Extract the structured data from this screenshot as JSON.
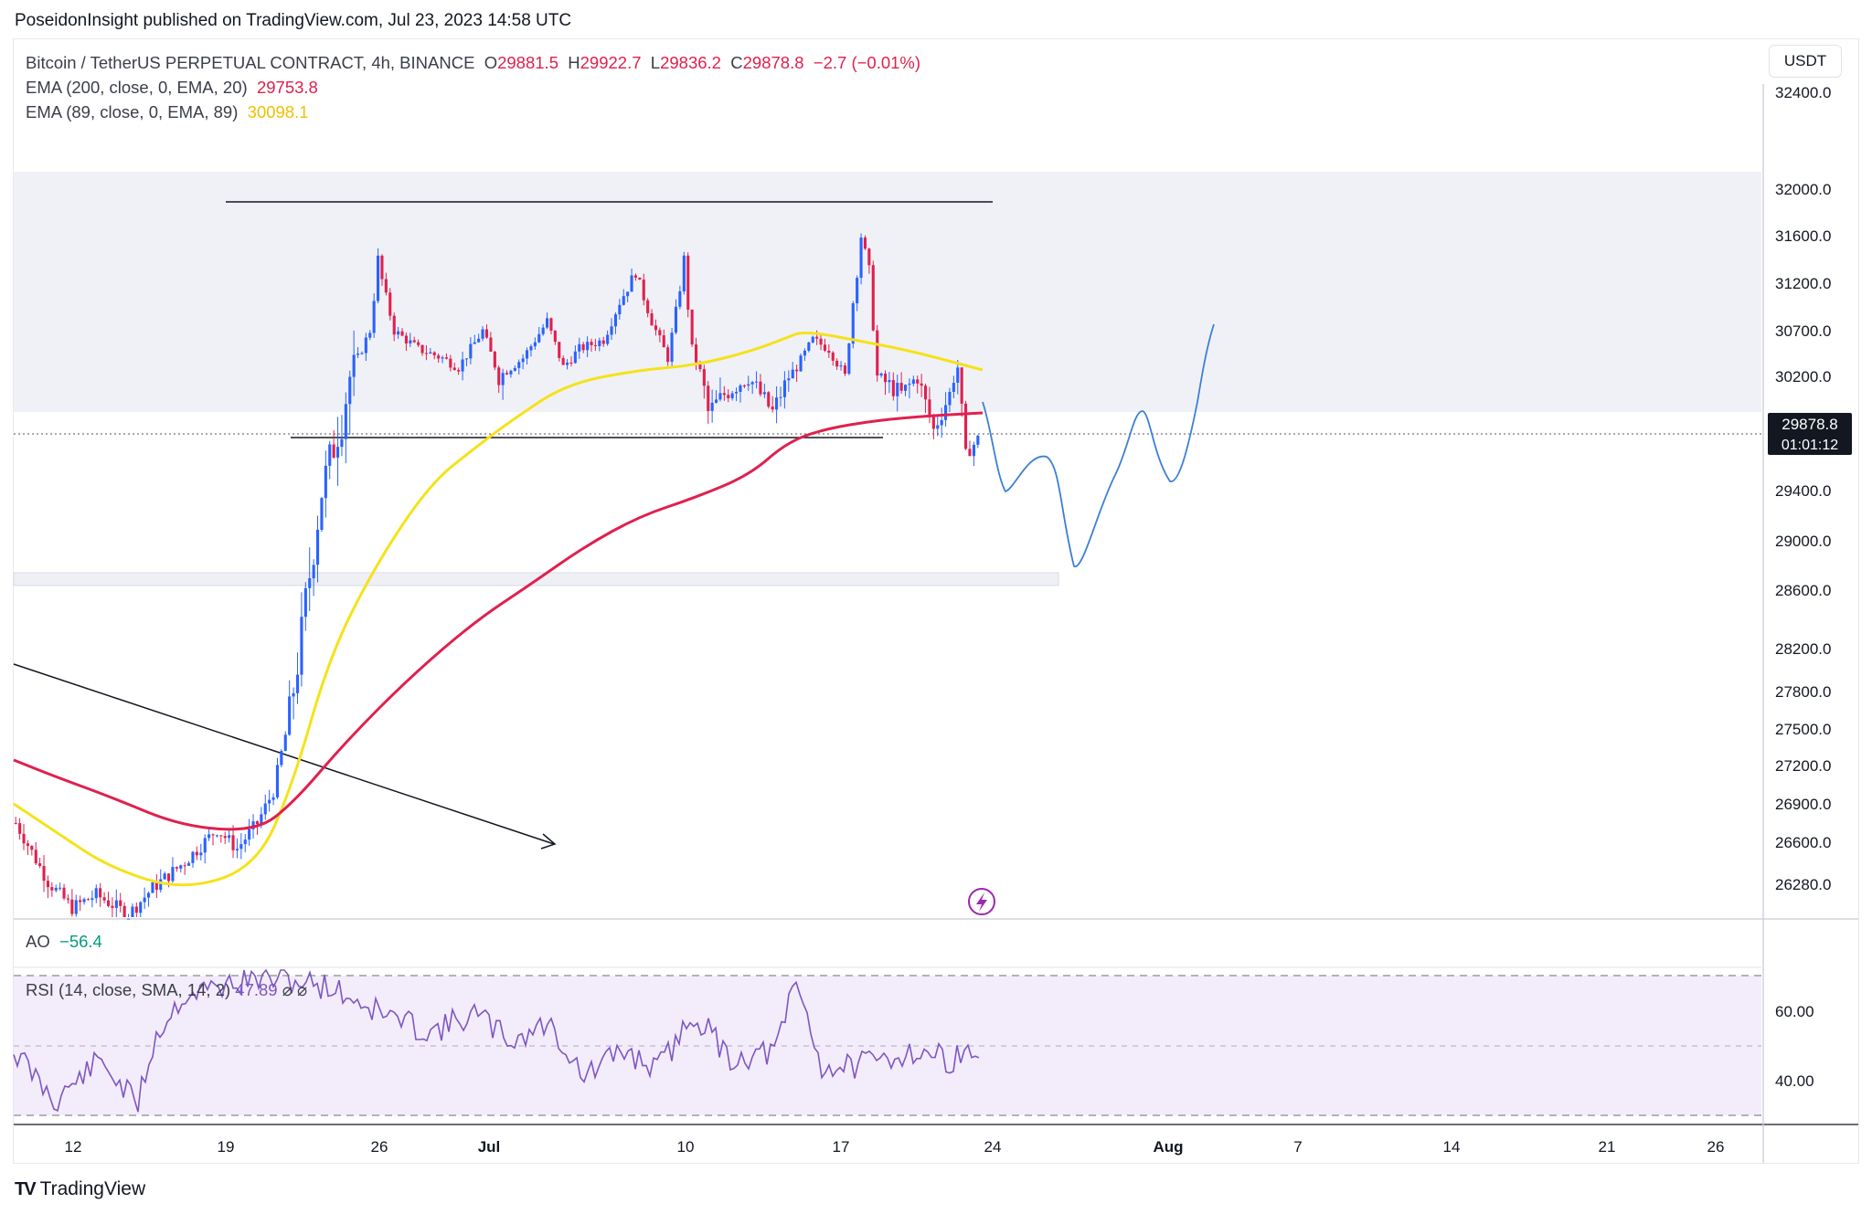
{
  "header": {
    "published_text": "PoseidonInsight published on TradingView.com, Jul 23, 2023 14:58 UTC"
  },
  "legend": {
    "symbol": "Bitcoin / TetherUS PERPETUAL CONTRACT, 4h, BINANCE",
    "open_label": "O",
    "open": "29881.5",
    "high_label": "H",
    "high": "29922.7",
    "low_label": "L",
    "low": "29836.2",
    "close_label": "C",
    "close": "29878.8",
    "change": "−2.7 (−0.01%)",
    "ema200_label": "EMA (200, close, 0, EMA, 20)",
    "ema200_value": "29753.8",
    "ema89_label": "EMA (89, close, 0, EMA, 89)",
    "ema89_value": "30098.1"
  },
  "currency_button": "USDT",
  "price_badge": {
    "price": "29878.8",
    "countdown": "01:01:12"
  },
  "ao": {
    "label": "AO",
    "value": "−56.4"
  },
  "rsi": {
    "label": "RSI (14, close, SMA, 14, 2)",
    "value": "47.89",
    "extra": "⌀ ⌀"
  },
  "footer": {
    "brand": "TradingView"
  },
  "colors": {
    "up": "#2962ff",
    "down": "#e0204e",
    "ema200": "#e0204e",
    "ema89": "#f0e020",
    "rsi": "#7e57c2",
    "forecast": "#3d7fd6"
  },
  "icons": {
    "lightning": "lightning-icon",
    "logo": "tradingview-logo-icon"
  },
  "chart_data": {
    "type": "candlestick",
    "price_axis": {
      "ticks": [
        32400,
        32000,
        31600,
        31200,
        30700,
        30200,
        29400,
        29000,
        28600,
        28200,
        27800,
        27500,
        27200,
        26900,
        26600,
        26280
      ],
      "tick_labels": [
        "32400.0",
        "32000.0",
        "31600.0",
        "31200.0",
        "30700.0",
        "30200.0",
        "29400.0",
        "29000.0",
        "28600.0",
        "28200.0",
        "27800.0",
        "27500.0",
        "27200.0",
        "26900.0",
        "26600.0",
        "26280.0"
      ]
    },
    "time_axis": {
      "labels": [
        "12",
        "19",
        "26",
        "Jul",
        "10",
        "17",
        "24",
        "Aug",
        "7",
        "14",
        "21",
        "26"
      ]
    },
    "rsi_axis": {
      "tick_labels": [
        "60.00",
        "40.00"
      ],
      "levels": [
        70,
        50,
        30
      ]
    },
    "last_price": 29878.8,
    "zones": [
      {
        "from": 29800,
        "to": 31750
      },
      {
        "from": 28450,
        "to": 28550
      }
    ],
    "range_lines": [
      {
        "price": 31490,
        "from": "Jun 19",
        "to": "Jul 24"
      },
      {
        "price": 29550,
        "from": "Jun 22",
        "to": "Jul 18"
      }
    ]
  }
}
